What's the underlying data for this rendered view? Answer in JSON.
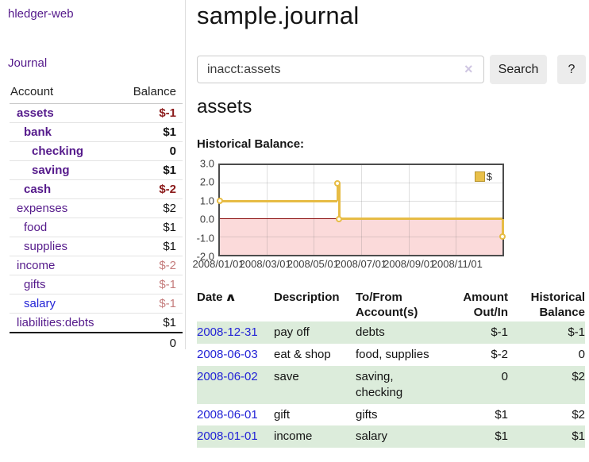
{
  "app": {
    "title": "hledger-web"
  },
  "sidebar": {
    "nav": {
      "journal_label": "Journal"
    },
    "accounts_table": {
      "headers": {
        "account": "Account",
        "balance": "Balance"
      },
      "rows": [
        {
          "name": "assets",
          "balance": "$-1",
          "depth": 0,
          "bold": true,
          "balance_negative": true
        },
        {
          "name": "bank",
          "balance": "$1",
          "depth": 1,
          "bold": true,
          "balance_negative": false
        },
        {
          "name": "checking",
          "balance": "0",
          "depth": 2,
          "bold": true,
          "balance_negative": false
        },
        {
          "name": "saving",
          "balance": "$1",
          "depth": 2,
          "bold": true,
          "balance_negative": false
        },
        {
          "name": "cash",
          "balance": "$-2",
          "depth": 1,
          "bold": true,
          "balance_negative": true
        },
        {
          "name": "expenses",
          "balance": "$2",
          "depth": 0,
          "bold": false,
          "balance_negative": false
        },
        {
          "name": "food",
          "balance": "$1",
          "depth": 1,
          "bold": false,
          "balance_negative": false
        },
        {
          "name": "supplies",
          "balance": "$1",
          "depth": 1,
          "bold": false,
          "balance_negative": false
        },
        {
          "name": "income",
          "balance": "$-2",
          "depth": 0,
          "bold": false,
          "balance_negative": true
        },
        {
          "name": "gifts",
          "balance": "$-1",
          "depth": 1,
          "bold": false,
          "balance_negative": true
        },
        {
          "name": "salary",
          "balance": "$-1",
          "depth": 1,
          "bold": false,
          "balance_negative": true,
          "link_color": "blue"
        },
        {
          "name": "liabilities:debts",
          "balance": "$1",
          "depth": 0,
          "bold": false,
          "balance_negative": false
        }
      ],
      "total": "0"
    }
  },
  "main": {
    "title": "sample.journal",
    "search": {
      "value": "inacct:assets",
      "clear_icon": "×",
      "button_label": "Search",
      "help_label": "?"
    },
    "account_heading": "assets",
    "chart_label": "Historical Balance:"
  },
  "chart_data": {
    "type": "line",
    "title": "Historical Balance of assets",
    "step": true,
    "series_color": "#e7bc45",
    "negative_region_color": "#fbdada",
    "zero_line_color": "#8c0f0f",
    "legend": [
      {
        "label": "$",
        "color": "#e9c04a"
      }
    ],
    "x_range": [
      "2008-01-01",
      "2008-12-31"
    ],
    "ylim": [
      -2.0,
      3.0
    ],
    "yticks": [
      3.0,
      2.0,
      1.0,
      0.0,
      -1.0,
      -2.0
    ],
    "xticks": [
      {
        "date": "2008-01-01",
        "label": "2008/01/01"
      },
      {
        "date": "2008-03-01",
        "label": "2008/03/01"
      },
      {
        "date": "2008-05-01",
        "label": "2008/05/01"
      },
      {
        "date": "2008-07-01",
        "label": "2008/07/01"
      },
      {
        "date": "2008-09-01",
        "label": "2008/09/01"
      },
      {
        "date": "2008-11-01",
        "label": "2008/11/01"
      }
    ],
    "points": [
      {
        "date": "2008-01-01",
        "value": 1
      },
      {
        "date": "2008-06-01",
        "value": 2
      },
      {
        "date": "2008-06-03",
        "value": 0
      },
      {
        "date": "2008-12-31",
        "value": -1
      }
    ]
  },
  "transactions": {
    "headers": {
      "date": "Date",
      "sort_icon": "∧",
      "description": "Description",
      "tofrom": "To/From Account(s)",
      "amount": "Amount Out/In",
      "historical": "Historical Balance"
    },
    "rows": [
      {
        "date": "2008-12-31",
        "description": "pay off",
        "accounts": "debts",
        "amount": "$-1",
        "amount_negative": true,
        "balance": "$-1",
        "balance_negative": true
      },
      {
        "date": "2008-06-03",
        "description": "eat & shop",
        "accounts": "food, supplies",
        "amount": "$-2",
        "amount_negative": true,
        "balance": "0",
        "balance_negative": false
      },
      {
        "date": "2008-06-02",
        "description": "save",
        "accounts": "saving,\nchecking",
        "amount": "0",
        "amount_negative": false,
        "balance": "$2",
        "balance_negative": false
      },
      {
        "date": "2008-06-01",
        "description": "gift",
        "accounts": "gifts",
        "amount": "$1",
        "amount_negative": false,
        "balance": "$2",
        "balance_negative": false
      },
      {
        "date": "2008-01-01",
        "description": "income",
        "accounts": "salary",
        "amount": "$1",
        "amount_negative": false,
        "balance": "$1",
        "balance_negative": false
      }
    ]
  }
}
